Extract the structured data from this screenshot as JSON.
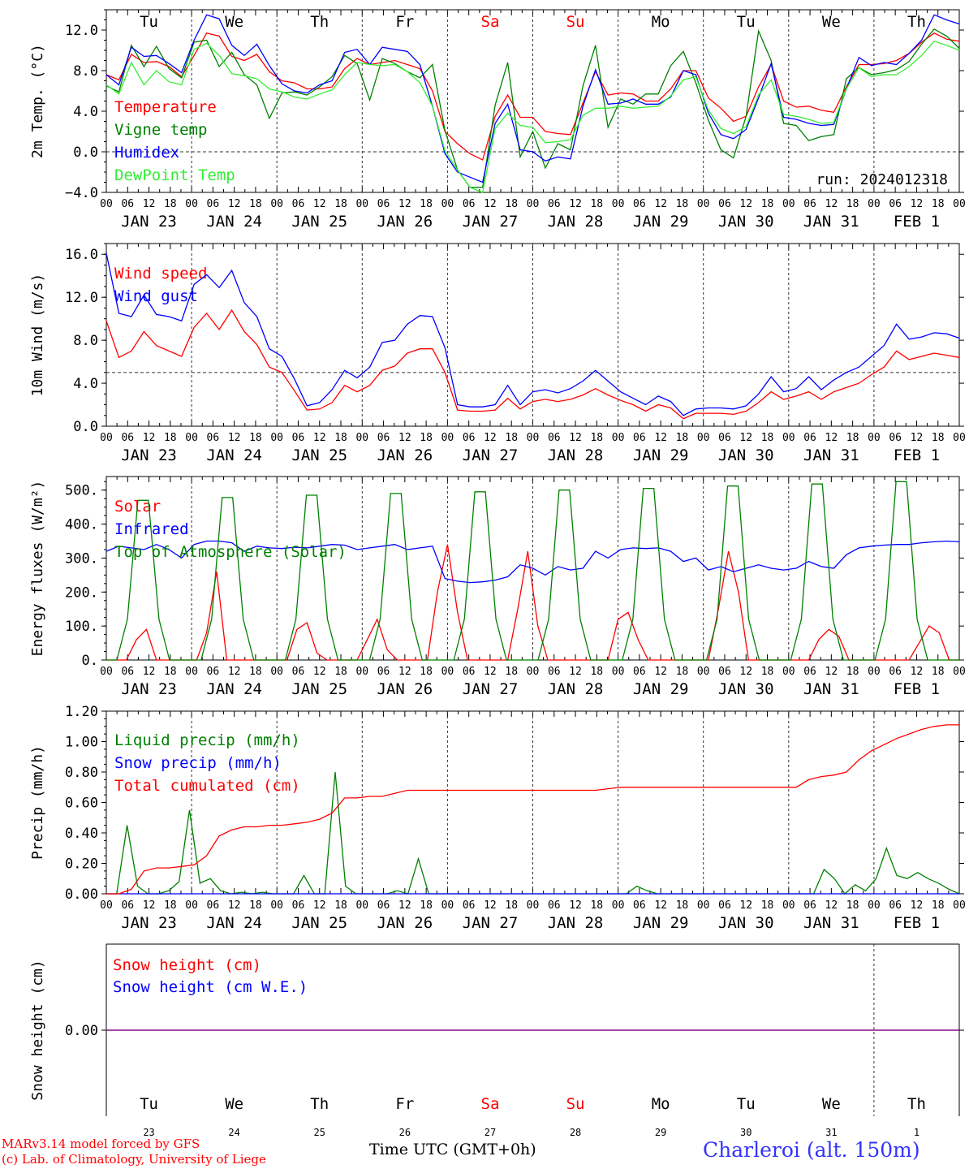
{
  "run_label": "run: 2024012318",
  "days": [
    "Tu",
    "We",
    "Th",
    "Fr",
    "Sa",
    "Su",
    "Mo",
    "Tu",
    "We",
    "Th"
  ],
  "weekend": [
    false,
    false,
    false,
    false,
    true,
    true,
    false,
    false,
    false,
    false
  ],
  "date_labels": [
    "JAN 23",
    "JAN 24",
    "JAN 25",
    "JAN 26",
    "JAN 27",
    "JAN 28",
    "JAN 29",
    "JAN 30",
    "JAN 31",
    "FEB  1"
  ],
  "hour_labels": [
    "00",
    "06",
    "12",
    "18"
  ],
  "final_hour_label": "00",
  "day_numbers": [
    "23",
    "24",
    "25",
    "26",
    "27",
    "28",
    "29",
    "30",
    "31",
    "1"
  ],
  "colors": {
    "red": "#ff0000",
    "green": "#008000",
    "blue": "#0000ff",
    "light_green": "#33ee33",
    "purple": "#800080",
    "axis": "#000000"
  },
  "chart_data": [
    {
      "type": "line",
      "ylabel": "2m Temp. (°C)",
      "ylim": [
        -4,
        14
      ],
      "yticks": [
        "−4.0",
        "0.0",
        "4.0",
        "8.0",
        "12.0"
      ],
      "ytick_values": [
        -4,
        0,
        4,
        8,
        12
      ],
      "reference_line": 0,
      "x_unit": "hours since Jan 23 00 UTC (3h steps)",
      "series": [
        {
          "name": "Temperature",
          "color": "#ff0000",
          "values": [
            7.6,
            7.1,
            9.6,
            8.8,
            8.9,
            8.4,
            7.4,
            9.5,
            11.7,
            11.4,
            9.4,
            9.0,
            9.6,
            7.9,
            7.0,
            6.8,
            6.2,
            6.2,
            6.4,
            8.2,
            9.2,
            8.6,
            8.8,
            9.0,
            8.6,
            8.2,
            6.0,
            2.0,
            0.8,
            -0.2,
            -0.8,
            3.5,
            5.6,
            3.4,
            3.4,
            2.0,
            1.8,
            1.7,
            4.8,
            7.9,
            5.6,
            5.8,
            5.7,
            5.0,
            5.0,
            6.2,
            8.0,
            8.0,
            5.3,
            4.3,
            3.0,
            3.5,
            6.4,
            8.6,
            5.0,
            4.4,
            4.5,
            4.1,
            3.9,
            6.4,
            8.6,
            8.6,
            8.7,
            9.0,
            9.7,
            10.8,
            11.7,
            11.1,
            10.9
          ]
        },
        {
          "name": "Vigne temp",
          "color": "#008000",
          "values": [
            6.5,
            5.9,
            10.5,
            8.4,
            10.4,
            8.2,
            7.3,
            10.8,
            11.0,
            8.4,
            9.8,
            7.6,
            6.6,
            3.3,
            5.8,
            5.9,
            5.6,
            6.4,
            7.4,
            9.5,
            8.7,
            5.1,
            9.2,
            8.7,
            7.9,
            7.3,
            8.6,
            2.1,
            -1.8,
            -3.5,
            -3.5,
            4.6,
            8.8,
            -0.5,
            2.0,
            -1.6,
            0.8,
            0.2,
            6.5,
            10.5,
            2.4,
            5.2,
            4.7,
            5.7,
            5.7,
            8.5,
            9.9,
            6.8,
            3.1,
            0.2,
            -0.6,
            3.5,
            11.9,
            9.0,
            2.8,
            2.6,
            1.1,
            1.5,
            1.7,
            7.2,
            8.3,
            7.6,
            7.8,
            8.1,
            8.9,
            10.6,
            12.1,
            11.4,
            10.2
          ]
        },
        {
          "name": "Humidex",
          "color": "#0000ff",
          "values": [
            7.6,
            6.6,
            10.3,
            9.4,
            9.5,
            8.7,
            7.8,
            11.0,
            13.5,
            13.1,
            10.5,
            9.5,
            10.6,
            8.5,
            6.7,
            6.0,
            5.8,
            6.6,
            7.0,
            9.8,
            10.1,
            8.6,
            10.3,
            10.1,
            9.9,
            8.6,
            4.5,
            -0.2,
            -2.0,
            -2.5,
            -3.0,
            2.8,
            4.7,
            0.2,
            0.0,
            -0.9,
            -0.5,
            -0.7,
            4.5,
            8.1,
            4.7,
            4.8,
            5.2,
            4.7,
            4.7,
            5.4,
            8.0,
            7.6,
            3.8,
            1.7,
            1.3,
            2.2,
            5.3,
            8.7,
            3.4,
            3.2,
            2.8,
            2.6,
            2.7,
            6.2,
            9.3,
            8.5,
            8.8,
            8.6,
            9.7,
            11.0,
            13.5,
            13.0,
            12.6
          ]
        },
        {
          "name": "DewPoint Temp",
          "color": "#33ee33",
          "values": [
            6.6,
            5.7,
            8.8,
            6.6,
            8.0,
            6.9,
            6.6,
            10.1,
            10.7,
            9.5,
            7.7,
            7.5,
            7.2,
            6.2,
            5.9,
            5.4,
            5.2,
            5.7,
            6.1,
            7.6,
            8.8,
            8.6,
            8.5,
            8.6,
            7.9,
            6.8,
            4.5,
            0.1,
            -1.8,
            -3.5,
            -4.2,
            2.3,
            3.8,
            2.6,
            2.4,
            0.9,
            1.0,
            1.2,
            3.6,
            4.3,
            4.3,
            4.5,
            4.3,
            4.4,
            4.5,
            5.5,
            7.1,
            7.4,
            4.1,
            2.3,
            1.8,
            2.5,
            5.6,
            7.1,
            3.7,
            3.5,
            3.2,
            2.8,
            2.9,
            6.2,
            8.3,
            7.4,
            7.6,
            7.6,
            8.4,
            9.5,
            10.9,
            10.5,
            10.0
          ]
        }
      ]
    },
    {
      "type": "line",
      "ylabel": "10m Wind (m/s)",
      "ylim": [
        0,
        17
      ],
      "yticks": [
        "0.0",
        "4.0",
        "8.0",
        "12.0",
        "16.0"
      ],
      "ytick_values": [
        0,
        4,
        8,
        12,
        16
      ],
      "reference_line": 5,
      "x_unit": "hours since Jan 23 00 UTC (3h steps)",
      "series": [
        {
          "name": "Wind speed",
          "color": "#ff0000",
          "values": [
            9.8,
            6.4,
            7.0,
            8.8,
            7.5,
            7.0,
            6.5,
            9.2,
            10.5,
            9.0,
            10.8,
            8.8,
            7.6,
            5.5,
            5.0,
            3.3,
            1.5,
            1.6,
            2.2,
            3.8,
            3.2,
            3.8,
            5.2,
            5.6,
            6.8,
            7.2,
            7.2,
            5.0,
            1.5,
            1.4,
            1.4,
            1.5,
            2.6,
            1.6,
            2.3,
            2.5,
            2.3,
            2.5,
            2.9,
            3.5,
            2.9,
            2.4,
            2.0,
            1.4,
            2.0,
            1.7,
            0.7,
            1.2,
            1.2,
            1.2,
            1.1,
            1.4,
            2.2,
            3.2,
            2.5,
            2.8,
            3.2,
            2.5,
            3.2,
            3.6,
            4.0,
            4.8,
            5.5,
            7.0,
            6.2,
            6.5,
            6.8,
            6.6,
            6.4
          ]
        },
        {
          "name": "Wind gust",
          "color": "#0000ff",
          "values": [
            16.1,
            10.5,
            10.2,
            12.2,
            10.4,
            10.2,
            9.8,
            13.2,
            14.1,
            12.9,
            14.5,
            11.5,
            10.2,
            7.2,
            6.5,
            4.4,
            1.9,
            2.2,
            3.4,
            5.2,
            4.5,
            5.5,
            7.8,
            8.0,
            9.5,
            10.3,
            10.2,
            7.3,
            2.0,
            1.8,
            1.8,
            2.0,
            3.8,
            2.0,
            3.2,
            3.4,
            3.1,
            3.5,
            4.2,
            5.2,
            4.2,
            3.2,
            2.6,
            2.0,
            2.8,
            2.3,
            1.0,
            1.6,
            1.7,
            1.7,
            1.6,
            1.9,
            3.0,
            4.6,
            3.2,
            3.5,
            4.6,
            3.4,
            4.3,
            5.0,
            5.5,
            6.5,
            7.5,
            9.5,
            8.1,
            8.3,
            8.7,
            8.6,
            8.2
          ]
        }
      ]
    },
    {
      "type": "line",
      "ylabel": "Energy fluxes (W/m²)",
      "ylim": [
        0,
        540
      ],
      "yticks": [
        "0.",
        "100.",
        "200.",
        "300.",
        "400.",
        "500."
      ],
      "ytick_values": [
        0,
        100,
        200,
        300,
        400,
        500
      ],
      "x_unit": "hours since Jan 23 00 UTC (3h steps)",
      "series": [
        {
          "name": "Solar",
          "color": "#ff0000",
          "values": [
            0,
            0,
            0,
            60,
            90,
            0,
            0,
            0,
            0,
            0,
            80,
            260,
            0,
            0,
            0,
            0,
            0,
            0,
            0,
            90,
            110,
            20,
            0,
            0,
            0,
            0,
            60,
            120,
            30,
            0,
            0,
            0,
            0,
            200,
            340,
            140,
            0,
            0,
            0,
            0,
            0,
            150,
            320,
            100,
            0,
            0,
            0,
            0,
            0,
            0,
            0,
            120,
            140,
            60,
            0,
            0,
            0,
            0,
            0,
            0,
            0,
            150,
            320,
            200,
            0,
            0,
            0,
            0,
            0,
            0,
            0,
            60,
            90,
            70,
            0,
            0,
            0,
            0,
            0,
            0,
            0,
            50,
            100,
            80,
            0,
            0
          ]
        },
        {
          "name": "Infrared",
          "color": "#0000ff",
          "values": [
            320,
            335,
            330,
            325,
            340,
            325,
            300,
            340,
            350,
            350,
            345,
            320,
            335,
            330,
            328,
            332,
            330,
            335,
            340,
            338,
            325,
            330,
            335,
            340,
            325,
            330,
            335,
            240,
            232,
            228,
            230,
            235,
            245,
            280,
            270,
            250,
            275,
            265,
            270,
            320,
            300,
            325,
            330,
            328,
            330,
            320,
            290,
            300,
            265,
            275,
            260,
            270,
            280,
            270,
            265,
            270,
            290,
            275,
            270,
            310,
            330,
            335,
            338,
            340,
            340,
            345,
            348,
            350,
            348
          ]
        },
        {
          "name": "Top of Atmosphere (Solar)",
          "color": "#008000",
          "values": [
            0,
            0,
            120,
            470,
            470,
            120,
            0,
            0,
            0,
            0,
            120,
            478,
            478,
            120,
            0,
            0,
            0,
            0,
            120,
            485,
            485,
            120,
            0,
            0,
            0,
            0,
            120,
            490,
            490,
            120,
            0,
            0,
            0,
            0,
            120,
            495,
            495,
            120,
            0,
            0,
            0,
            0,
            120,
            500,
            500,
            120,
            0,
            0,
            0,
            0,
            120,
            505,
            505,
            120,
            0,
            0,
            0,
            0,
            120,
            512,
            512,
            120,
            0,
            0,
            0,
            0,
            120,
            518,
            518,
            120,
            0,
            0,
            0,
            0,
            120,
            525,
            525,
            120,
            0,
            0,
            0,
            0
          ]
        }
      ]
    },
    {
      "type": "line",
      "ylabel": "Precip (mm/h)",
      "ylim": [
        0,
        1.2
      ],
      "yticks": [
        "0.00",
        "0.20",
        "0.40",
        "0.60",
        "0.80",
        "1.00",
        "1.20"
      ],
      "ytick_values": [
        0,
        0.2,
        0.4,
        0.6,
        0.8,
        1.0,
        1.2
      ],
      "x_unit": "hours since Jan 23 00 UTC (3h steps)",
      "series": [
        {
          "name": "Liquid precip (mm/h)",
          "color": "#008000",
          "values": [
            0,
            0,
            0.45,
            0.05,
            0,
            0,
            0.02,
            0.08,
            0.55,
            0.07,
            0.1,
            0.02,
            0,
            0.01,
            0,
            0.01,
            0,
            0,
            0,
            0.12,
            0,
            0,
            0.8,
            0.05,
            0,
            0,
            0,
            0,
            0.02,
            0,
            0.23,
            0,
            0,
            0,
            0,
            0,
            0,
            0,
            0,
            0,
            0,
            0,
            0,
            0,
            0,
            0,
            0,
            0,
            0,
            0,
            0,
            0.05,
            0.02,
            0,
            0,
            0,
            0,
            0,
            0,
            0,
            0,
            0,
            0,
            0,
            0,
            0,
            0,
            0,
            0,
            0.16,
            0.1,
            0,
            0.06,
            0.02,
            0.1,
            0.3,
            0.12,
            0.1,
            0.14,
            0.1,
            0.07,
            0.03,
            0
          ]
        },
        {
          "name": "Snow precip (mm/h)",
          "color": "#0000ff",
          "values": [
            0,
            0,
            0,
            0,
            0,
            0,
            0,
            0,
            0,
            0,
            0,
            0,
            0,
            0,
            0,
            0,
            0,
            0,
            0,
            0,
            0,
            0,
            0,
            0,
            0,
            0,
            0,
            0,
            0,
            0,
            0,
            0,
            0,
            0,
            0,
            0,
            0,
            0,
            0,
            0,
            0,
            0,
            0,
            0,
            0,
            0,
            0,
            0,
            0,
            0,
            0,
            0,
            0,
            0,
            0,
            0,
            0,
            0,
            0,
            0,
            0,
            0,
            0,
            0,
            0,
            0,
            0,
            0,
            0
          ]
        },
        {
          "name": "Total cumulated (cm)",
          "color": "#ff0000",
          "values": [
            0,
            0,
            0.03,
            0.15,
            0.17,
            0.17,
            0.18,
            0.19,
            0.25,
            0.38,
            0.42,
            0.44,
            0.44,
            0.45,
            0.45,
            0.46,
            0.47,
            0.49,
            0.53,
            0.63,
            0.63,
            0.64,
            0.64,
            0.66,
            0.68,
            0.68,
            0.68,
            0.68,
            0.68,
            0.68,
            0.68,
            0.68,
            0.68,
            0.68,
            0.68,
            0.68,
            0.68,
            0.68,
            0.68,
            0.68,
            0.69,
            0.7,
            0.7,
            0.7,
            0.7,
            0.7,
            0.7,
            0.7,
            0.7,
            0.7,
            0.7,
            0.7,
            0.7,
            0.7,
            0.7,
            0.7,
            0.75,
            0.77,
            0.78,
            0.8,
            0.88,
            0.94,
            0.98,
            1.02,
            1.05,
            1.08,
            1.1,
            1.11,
            1.11
          ]
        }
      ]
    },
    {
      "type": "line",
      "ylabel": "Snow height (cm)",
      "ylim": [
        -1,
        1
      ],
      "yticks": [
        "0.00"
      ],
      "ytick_values": [
        0
      ],
      "x_unit": "hours since Jan 23 00 UTC (3h steps)",
      "series": [
        {
          "name": "Snow height (cm)",
          "color": "#ff0000",
          "values": [
            0,
            0
          ]
        },
        {
          "name": "Snow height (cm W.E.)",
          "color": "#0000ff",
          "values": [
            0,
            0
          ]
        }
      ]
    }
  ],
  "footer": {
    "xlabel": "Time UTC (GMT+0h)",
    "credit_1": "MARv3.14 model forced by GFS",
    "credit_2": "(c) Lab. of Climatology, University of Liege",
    "location": "Charleroi (alt. 150m)"
  }
}
